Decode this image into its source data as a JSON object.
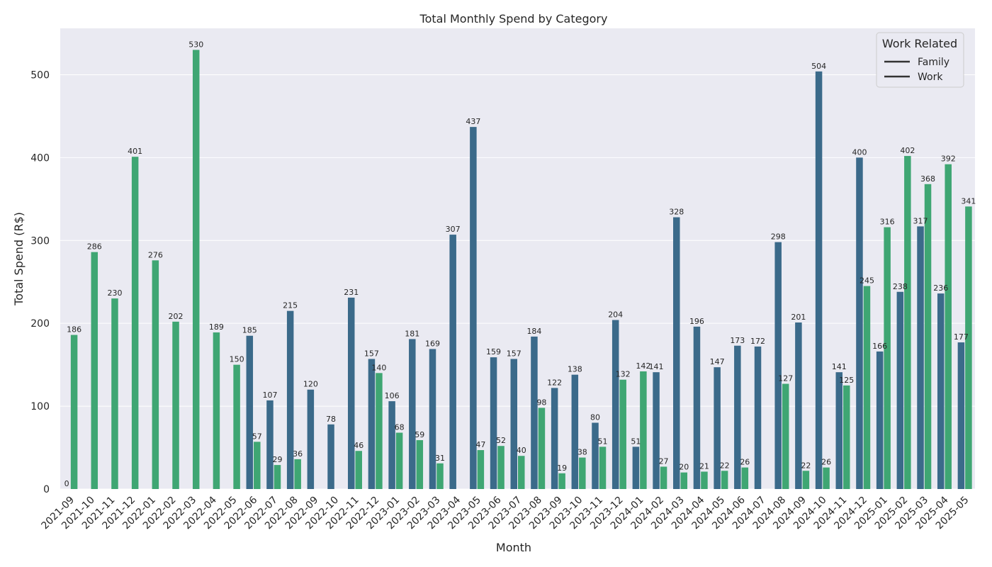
{
  "chart_data": {
    "type": "bar",
    "title": "Total Monthly Spend by Category",
    "xlabel": "Month",
    "ylabel": "Total Spend (R$)",
    "ylim": [
      0,
      556
    ],
    "yticks": [
      0,
      100,
      200,
      300,
      400,
      500
    ],
    "grid": true,
    "legend": {
      "title": "Work Related",
      "placement": "top-right",
      "entries": [
        "Family",
        "Work"
      ]
    },
    "categories": [
      "2021-09",
      "2021-10",
      "2021-11",
      "2021-12",
      "2022-01",
      "2022-02",
      "2022-03",
      "2022-04",
      "2022-05",
      "2022-06",
      "2022-07",
      "2022-08",
      "2022-09",
      "2022-10",
      "2022-11",
      "2022-12",
      "2023-01",
      "2023-02",
      "2023-03",
      "2023-04",
      "2023-05",
      "2023-06",
      "2023-07",
      "2023-08",
      "2023-09",
      "2023-10",
      "2023-11",
      "2023-12",
      "2024-01",
      "2024-02",
      "2024-03",
      "2024-04",
      "2024-05",
      "2024-06",
      "2024-07",
      "2024-08",
      "2024-09",
      "2024-10",
      "2024-11",
      "2024-12",
      "2025-01",
      "2025-02",
      "2025-03",
      "2025-04",
      "2025-05"
    ],
    "series": [
      {
        "color": "#3b6a8a",
        "values": [
          0,
          null,
          null,
          null,
          null,
          null,
          null,
          null,
          null,
          185,
          107,
          215,
          120,
          78,
          231,
          157,
          106,
          181,
          169,
          307,
          437,
          159,
          157,
          184,
          122,
          138,
          80,
          204,
          51,
          141,
          328,
          196,
          147,
          173,
          172,
          298,
          201,
          504,
          141,
          400,
          166,
          238,
          317,
          236,
          177
        ]
      },
      {
        "color": "#3fa673",
        "values": [
          186,
          286,
          230,
          401,
          276,
          202,
          530,
          189,
          150,
          57,
          29,
          36,
          null,
          null,
          46,
          140,
          68,
          59,
          31,
          null,
          47,
          52,
          40,
          98,
          19,
          38,
          51,
          132,
          142,
          27,
          20,
          21,
          22,
          26,
          null,
          127,
          22,
          26,
          125,
          245,
          316,
          402,
          368,
          392,
          341
        ]
      }
    ]
  },
  "colors": {
    "plot_bg": "#eaeaf2",
    "grid": "#ffffff",
    "text": "#262626"
  }
}
